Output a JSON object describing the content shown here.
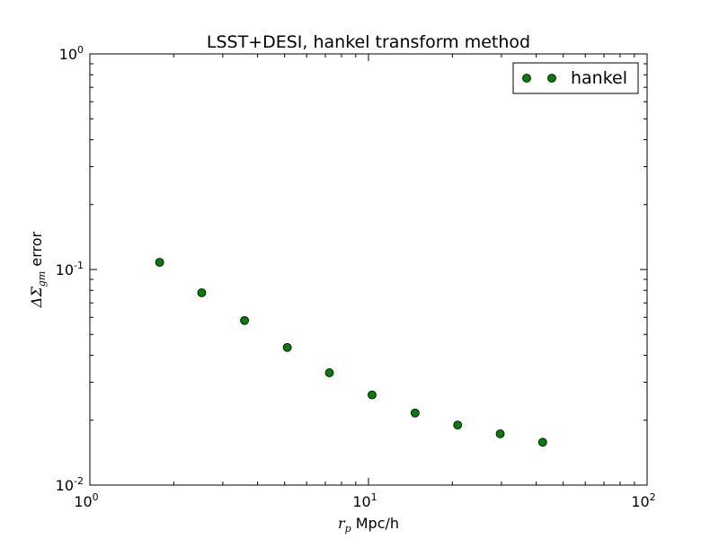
{
  "chart_data": {
    "type": "scatter",
    "title": "LSST+DESI, hankel transform method",
    "xlabel": {
      "symbol": "r",
      "sub": "p",
      "rest": " Mpc/h"
    },
    "ylabel": {
      "symbol": "ΔΣ",
      "sub": "gm",
      "rest": " error"
    },
    "xscale": "log",
    "yscale": "log",
    "xlim": [
      1,
      100
    ],
    "ylim": [
      0.01,
      1
    ],
    "xticks": [
      {
        "value": 1,
        "base": "10",
        "exp": "0"
      },
      {
        "value": 10,
        "base": "10",
        "exp": "1"
      },
      {
        "value": 100,
        "base": "10",
        "exp": "2"
      }
    ],
    "yticks": [
      {
        "value": 0.01,
        "base": "10",
        "exp": "-2"
      },
      {
        "value": 0.1,
        "base": "10",
        "exp": "-1"
      },
      {
        "value": 1,
        "base": "10",
        "exp": "0"
      }
    ],
    "legend_position": "top-right",
    "series": [
      {
        "name": "hankel",
        "color": "#007f00",
        "marker": "circle",
        "x": [
          1.78,
          2.52,
          3.59,
          5.11,
          7.24,
          10.3,
          14.7,
          20.9,
          29.7,
          42.2
        ],
        "y": [
          0.108,
          0.078,
          0.058,
          0.0435,
          0.0332,
          0.0262,
          0.0216,
          0.019,
          0.0173,
          0.0158
        ]
      }
    ]
  }
}
